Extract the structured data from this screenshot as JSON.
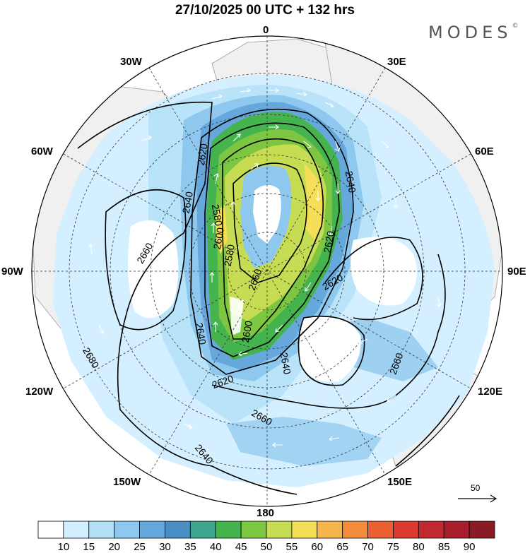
{
  "title": "27/10/2025  00 UTC  + 132 hrs",
  "brand": "MODES",
  "brand_mark": "©",
  "longitude_labels": {
    "n": "0",
    "ne30": "30E",
    "ne60": "60E",
    "e": "90E",
    "se120": "120E",
    "se150": "150E",
    "s": "180",
    "sw150": "150W",
    "sw120": "120W",
    "w": "90W",
    "nw60": "60W",
    "nw30": "30W"
  },
  "contour_labels": [
    "2620",
    "2640",
    "2640",
    "2660",
    "2580",
    "2600",
    "2580",
    "2620",
    "2640",
    "2620",
    "2660",
    "2600",
    "2620",
    "2640",
    "2660",
    "2680",
    "2660",
    "2640",
    "2640",
    "2660"
  ],
  "reference_vector": {
    "label": "50"
  },
  "colorbar": {
    "ticks": [
      "10",
      "15",
      "20",
      "25",
      "30",
      "35",
      "40",
      "45",
      "50",
      "55",
      "60",
      "65",
      "70",
      "75",
      "80",
      "85",
      "90"
    ],
    "colors": [
      "#ffffff",
      "#d4efff",
      "#b3e0f7",
      "#8ec8ee",
      "#67a8dc",
      "#4a8ec4",
      "#3ea58e",
      "#45b44f",
      "#7dc642",
      "#c6dc52",
      "#f5df58",
      "#f6b44c",
      "#f28c3a",
      "#eb6030",
      "#dc3a30",
      "#c22830",
      "#a81e2c",
      "#8a1a24"
    ]
  }
}
